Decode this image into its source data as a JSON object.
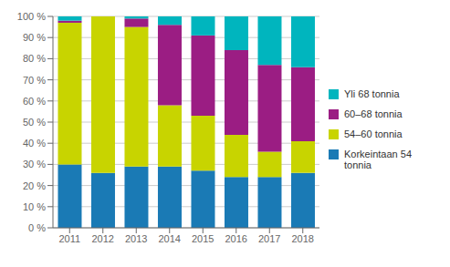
{
  "chart_data": {
    "type": "bar",
    "stacked": true,
    "categories": [
      "2011",
      "2012",
      "2013",
      "2014",
      "2015",
      "2016",
      "2017",
      "2018"
    ],
    "series": [
      {
        "name": "Korkeintaan 54\ntonnia",
        "color": "#1a7ab5",
        "values": [
          30,
          26,
          29,
          29,
          27,
          24,
          24,
          26
        ]
      },
      {
        "name": "54–60 tonnia",
        "color": "#c8d400",
        "values": [
          67,
          74,
          66,
          29,
          26,
          20,
          12,
          15
        ]
      },
      {
        "name": "60–68 tonnia",
        "color": "#9b1d83",
        "values": [
          1,
          0,
          4,
          38,
          38,
          40,
          41,
          35
        ]
      },
      {
        "name": "Yli 68 tonnia",
        "color": "#00b5be",
        "values": [
          2,
          0,
          1,
          4,
          9,
          16,
          23,
          24
        ]
      }
    ],
    "ylim": [
      0,
      100
    ],
    "yticks": [
      {
        "value": 0,
        "label": "0 %"
      },
      {
        "value": 10,
        "label": "10 %"
      },
      {
        "value": 20,
        "label": "20 %"
      },
      {
        "value": 30,
        "label": "30 %"
      },
      {
        "value": 40,
        "label": "40 %"
      },
      {
        "value": 50,
        "label": "50 %"
      },
      {
        "value": 60,
        "label": "60 %"
      },
      {
        "value": 70,
        "label": "70 %"
      },
      {
        "value": 80,
        "label": "80 %"
      },
      {
        "value": 90,
        "label": "90 %"
      },
      {
        "value": 100,
        "label": "100 %"
      }
    ],
    "grid": true,
    "legend": "right"
  }
}
